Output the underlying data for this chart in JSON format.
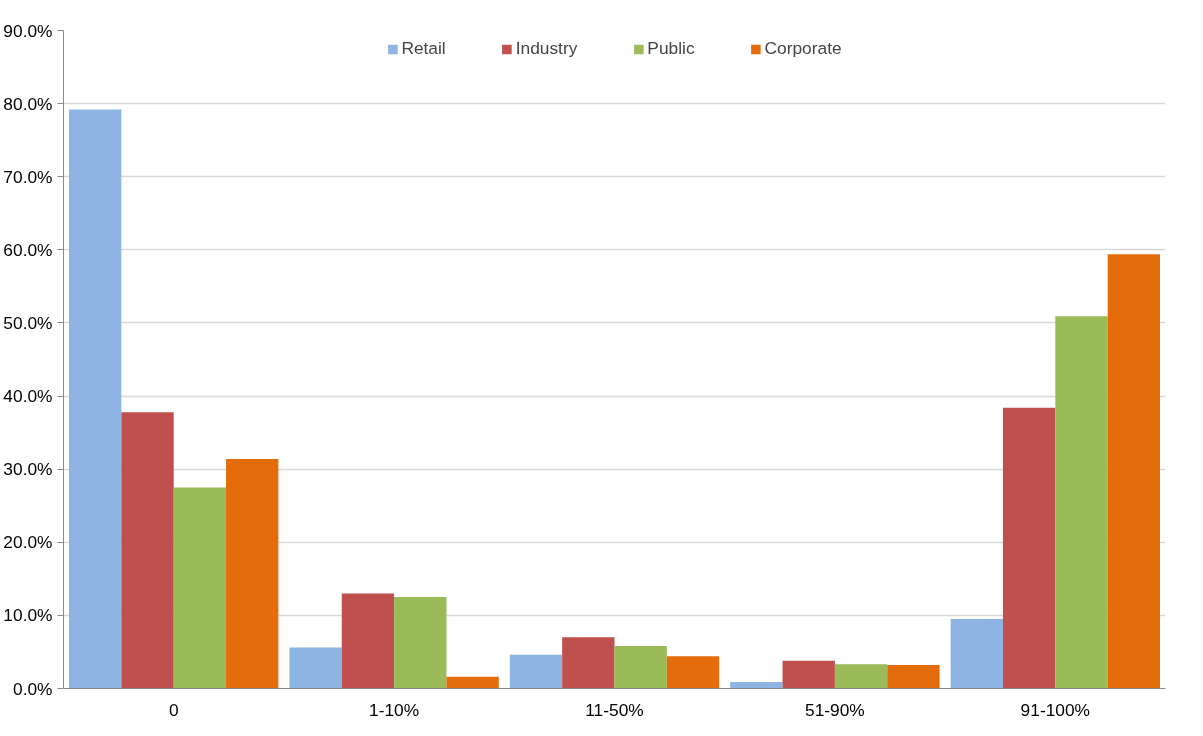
{
  "chart_data": {
    "type": "bar",
    "categories": [
      "0",
      "1-10%",
      "11-50%",
      "51-90%",
      "91-100%"
    ],
    "series": [
      {
        "name": "Retail",
        "color": "#8eb4e3",
        "values": [
          79.2,
          5.6,
          4.6,
          0.9,
          9.5
        ]
      },
      {
        "name": "Industry",
        "color": "#c0504d",
        "values": [
          37.8,
          13.0,
          7.0,
          3.8,
          38.4
        ]
      },
      {
        "name": "Public",
        "color": "#9bbb59",
        "values": [
          27.5,
          12.5,
          5.8,
          3.3,
          50.9
        ]
      },
      {
        "name": "Corporate",
        "color": "#e46c0a",
        "values": [
          31.4,
          1.6,
          4.4,
          3.2,
          59.4
        ]
      }
    ],
    "ylim": [
      0,
      90
    ],
    "yticks": [
      {
        "value": 0,
        "label": "0.0%"
      },
      {
        "value": 10,
        "label": "10.0%"
      },
      {
        "value": 20,
        "label": "20.0%"
      },
      {
        "value": 30,
        "label": "30.0%"
      },
      {
        "value": 40,
        "label": "40.0%"
      },
      {
        "value": 50,
        "label": "50.0%"
      },
      {
        "value": 60,
        "label": "60.0%"
      },
      {
        "value": 70,
        "label": "70.0%"
      },
      {
        "value": 80,
        "label": "80.0%"
      },
      {
        "value": 90,
        "label": "90.0%"
      }
    ],
    "grid": "y",
    "legend": "top"
  }
}
